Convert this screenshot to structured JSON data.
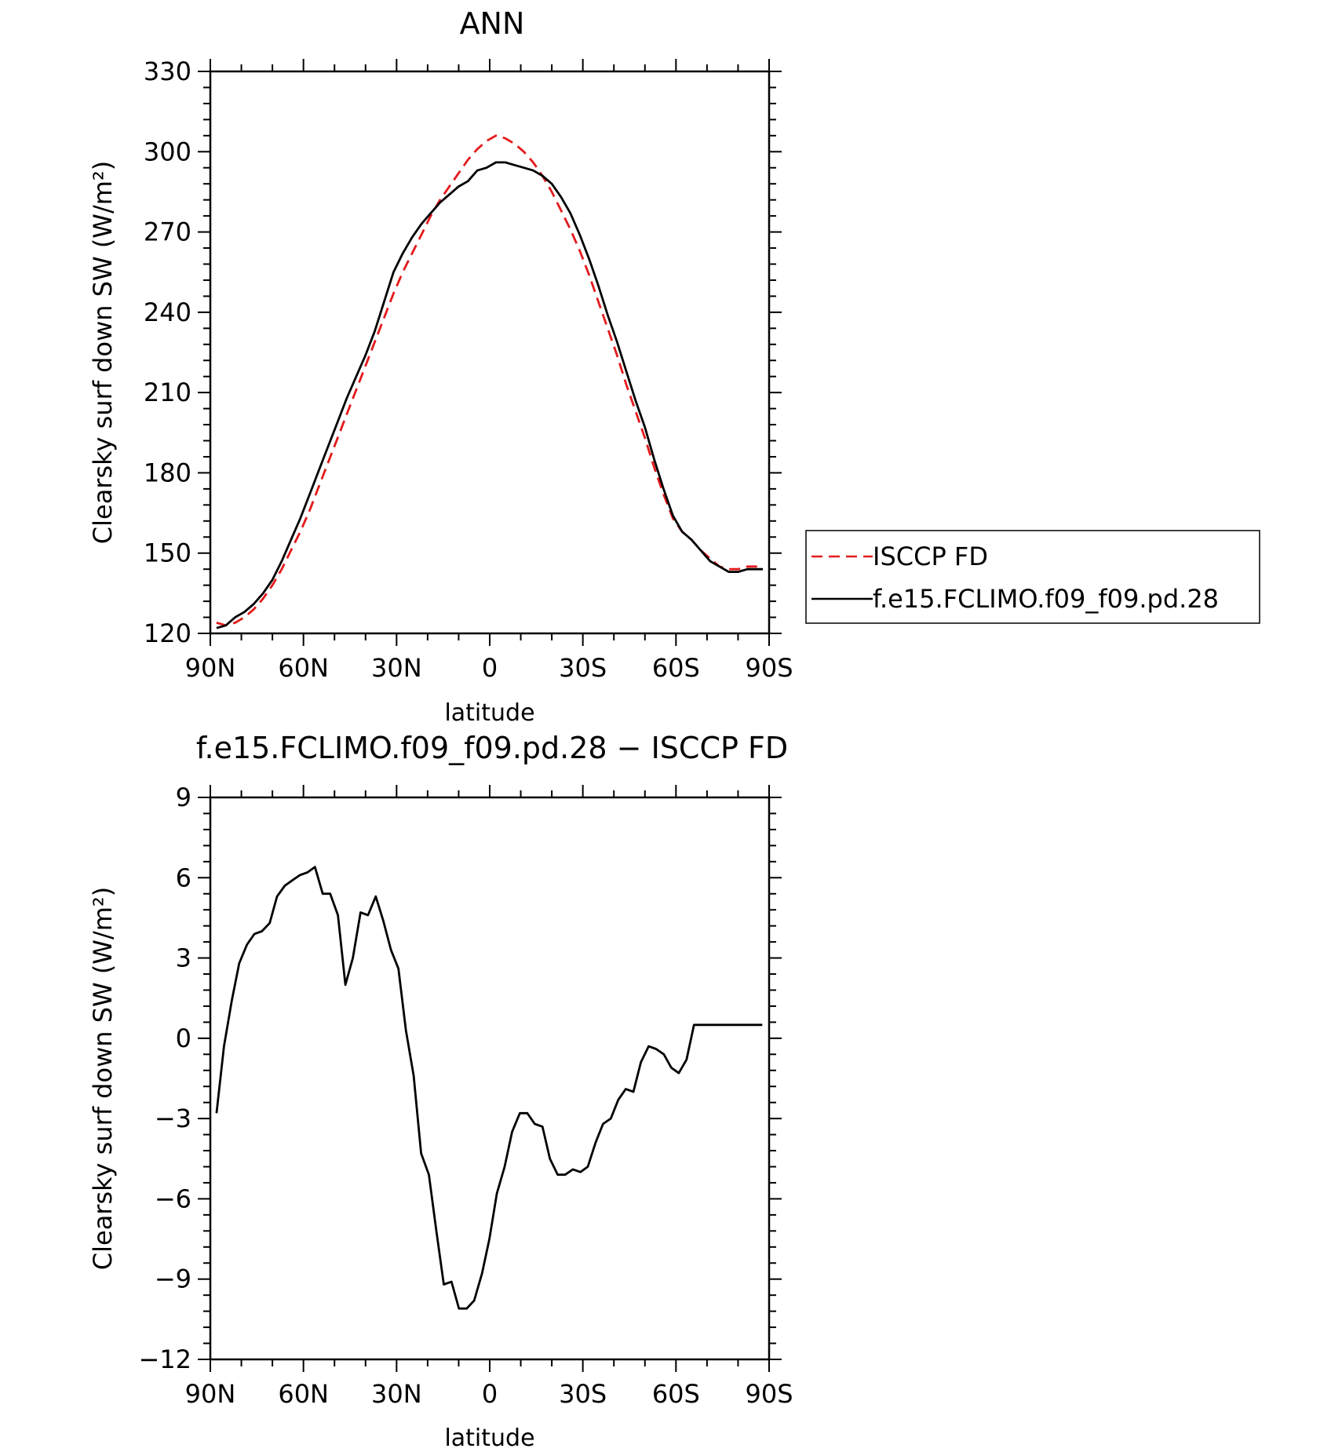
{
  "chart_data": [
    {
      "type": "line",
      "title": "ANN",
      "xlabel": "latitude",
      "ylabel": "Clearsky surf down SW (W/m²)",
      "xlim": [
        90,
        -90
      ],
      "ylim": [
        120,
        330
      ],
      "xticks": [
        90,
        60,
        30,
        0,
        -30,
        -60,
        -90
      ],
      "xtick_labels": [
        "90N",
        "60N",
        "30N",
        "0",
        "30S",
        "60S",
        "90S"
      ],
      "yticks": [
        120,
        150,
        180,
        210,
        240,
        270,
        300,
        330
      ],
      "ytick_labels": [
        "120",
        "150",
        "180",
        "210",
        "240",
        "270",
        "300",
        "330"
      ],
      "grid": false,
      "legend_position": "right",
      "x": [
        88,
        85,
        82,
        79,
        76,
        73,
        70,
        67,
        64,
        61,
        58,
        55,
        52,
        49,
        46,
        43,
        40,
        37,
        34,
        31,
        28,
        25,
        22,
        19,
        16,
        13,
        10,
        7,
        4,
        1,
        -2,
        -5,
        -8,
        -11,
        -14,
        -17,
        -20,
        -23,
        -26,
        -29,
        -32,
        -35,
        -38,
        -41,
        -44,
        -47,
        -50,
        -53,
        -56,
        -59,
        -62,
        -65,
        -68,
        -71,
        -74,
        -77,
        -80,
        -83,
        -86,
        -88
      ],
      "series": [
        {
          "name": "ISCCP FD",
          "color": "#e31a1c",
          "dash": "dashed",
          "values": [
            124,
            123,
            124,
            126,
            129,
            133,
            138,
            144,
            151,
            158,
            166,
            175,
            184,
            193,
            202,
            211,
            220,
            229,
            238,
            247,
            255,
            262,
            269,
            276,
            282,
            287,
            292,
            297,
            301,
            304,
            306,
            305,
            303,
            300,
            296,
            291,
            285,
            278,
            271,
            263,
            254,
            244,
            234,
            224,
            213,
            203,
            193,
            182,
            172,
            163,
            158,
            155,
            151,
            148,
            145,
            144,
            144,
            145,
            145,
            145
          ],
          "label_bind": "chart_data.0.series.0.name"
        },
        {
          "name": "f.e15.FCLIMO.f09_f09.pd.28",
          "color": "#000000",
          "dash": "solid",
          "values": [
            122,
            123,
            126,
            128,
            131,
            135,
            140,
            147,
            155,
            163,
            172,
            181,
            190,
            199,
            208,
            216,
            224,
            233,
            244,
            255,
            262,
            268,
            273,
            277,
            281,
            284,
            287,
            289,
            293,
            294,
            296,
            296,
            295,
            294,
            293,
            291,
            288,
            283,
            277,
            269,
            260,
            250,
            239,
            229,
            218,
            207,
            197,
            185,
            174,
            164,
            158,
            155,
            151,
            147,
            145,
            143,
            143,
            144,
            144,
            144
          ]
        }
      ]
    },
    {
      "type": "line",
      "title": "f.e15.FCLIMO.f09_f09.pd.28 − ISCCP FD",
      "xlabel": "latitude",
      "ylabel": "Clearsky surf down SW (W/m²)",
      "xlim": [
        90,
        -90
      ],
      "ylim": [
        -12,
        9
      ],
      "xticks": [
        90,
        60,
        30,
        0,
        -30,
        -60,
        -90
      ],
      "xtick_labels": [
        "90N",
        "60N",
        "30N",
        "0",
        "30S",
        "60S",
        "90S"
      ],
      "yticks": [
        -12,
        -9,
        -6,
        -3,
        0,
        3,
        6,
        9
      ],
      "ytick_labels": [
        "−12",
        "−9",
        "−6",
        "−3",
        "0",
        "3",
        "6",
        "9"
      ],
      "grid": false,
      "x": [
        88,
        85.6,
        83.1,
        80.7,
        78.2,
        75.8,
        73.4,
        70.9,
        68.5,
        66,
        63.6,
        61.1,
        58.7,
        56.3,
        53.8,
        51.4,
        48.9,
        46.5,
        44.1,
        41.6,
        39.2,
        36.7,
        34.3,
        31.8,
        29.4,
        27,
        24.5,
        22.1,
        19.6,
        17.2,
        14.8,
        12.3,
        9.9,
        7.4,
        5,
        2.5,
        0.1,
        -2.3,
        -4.8,
        -7.2,
        -9.7,
        -12.1,
        -14.5,
        -17,
        -19.4,
        -21.9,
        -24.3,
        -26.8,
        -29.2,
        -31.6,
        -34.1,
        -36.5,
        -39,
        -41.4,
        -43.8,
        -46.3,
        -48.7,
        -51.2,
        -53.6,
        -56.1,
        -58.5,
        -60.9,
        -63.4,
        -65.8,
        -68.3,
        -70.7,
        -73.1,
        -75.6,
        -78,
        -80.5,
        -82.9,
        -85.4,
        -87.8
      ],
      "series": [
        {
          "name": "",
          "color": "#000000",
          "dash": "solid",
          "values": [
            -2.8,
            -0.3,
            1.4,
            2.8,
            3.5,
            3.9,
            4,
            4.3,
            5.3,
            5.7,
            5.9,
            6.1,
            6.2,
            6.4,
            5.4,
            5.4,
            4.6,
            2,
            3,
            4.7,
            4.6,
            5.3,
            4.4,
            3.3,
            2.6,
            0.3,
            -1.4,
            -4.3,
            -5.1,
            -7.2,
            -9.2,
            -9.1,
            -10.1,
            -10.1,
            -9.8,
            -8.8,
            -7.5,
            -5.8,
            -4.8,
            -3.5,
            -2.8,
            -2.8,
            -3.2,
            -3.3,
            -4.5,
            -5.1,
            -5.1,
            -4.9,
            -5,
            -4.8,
            -3.9,
            -3.2,
            -3,
            -2.3,
            -1.9,
            -2,
            -0.9,
            -0.3,
            -0.4,
            -0.6,
            -1.1,
            -1.3,
            -0.8,
            0.5,
            0.5,
            0.5,
            0.5,
            0.5,
            0.5,
            0.5,
            0.5,
            0.5,
            0.5
          ]
        }
      ]
    }
  ]
}
